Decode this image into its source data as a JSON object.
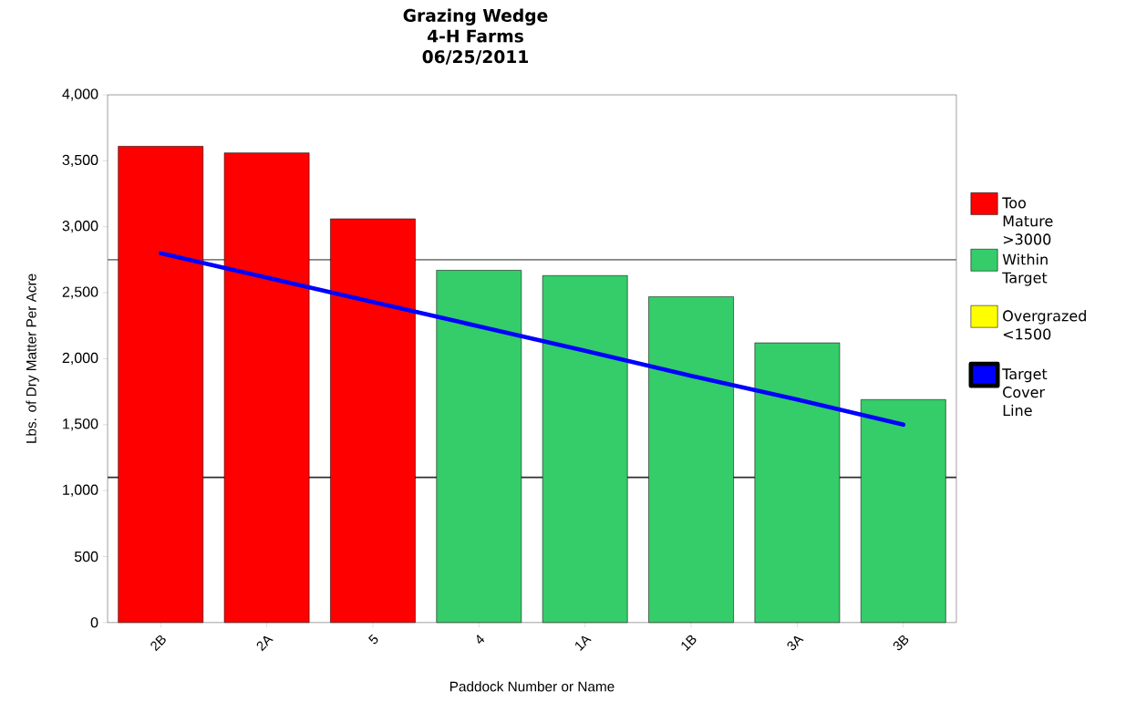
{
  "chart_data": {
    "type": "bar",
    "title": "Grazing Wedge",
    "subtitle": "4-H Farms 06/25/2011",
    "xlabel": "Paddock Number or Name",
    "ylabel": "Lbs. of Dry Matter Per Acre",
    "categories": [
      "2B",
      "2A",
      "5",
      "4",
      "1A",
      "1B",
      "3A",
      "3B"
    ],
    "series": [
      {
        "name": "Too Mature >3000",
        "color": "#ff0000",
        "values": [
          3610,
          3560,
          3060,
          null,
          null,
          null,
          null,
          null
        ]
      },
      {
        "name": "Within Target",
        "color": "#35cc6a",
        "values": [
          null,
          null,
          null,
          2670,
          2630,
          2470,
          2120,
          1690
        ]
      },
      {
        "name": "Overgrazed <1500",
        "color": "#ffff00",
        "values": [
          null,
          null,
          null,
          null,
          null,
          null,
          null,
          null
        ]
      },
      {
        "name": "Target Cover Line",
        "type": "line",
        "color": "#0000ff",
        "values": [
          2800,
          2615,
          2430,
          2245,
          2060,
          1870,
          1690,
          1500
        ]
      }
    ],
    "ylim": [
      0,
      4000
    ],
    "yticks": [
      0,
      500,
      {
        "value": 1000,
        "label": "1,000"
      },
      {
        "value": 1500,
        "label": "1,500"
      },
      {
        "value": 2000,
        "label": "2,000"
      },
      {
        "value": 2500,
        "label": "2,500"
      },
      {
        "value": 3000,
        "label": "3,000"
      },
      {
        "value": 3500,
        "label": "3,500"
      },
      {
        "value": 4000,
        "label": "4,000"
      }
    ],
    "ref_lines": [
      {
        "axis": "y",
        "value": 2750,
        "color": "#808080"
      },
      {
        "axis": "y",
        "value": 1100,
        "color": "#303030"
      }
    ],
    "legend": "right"
  }
}
